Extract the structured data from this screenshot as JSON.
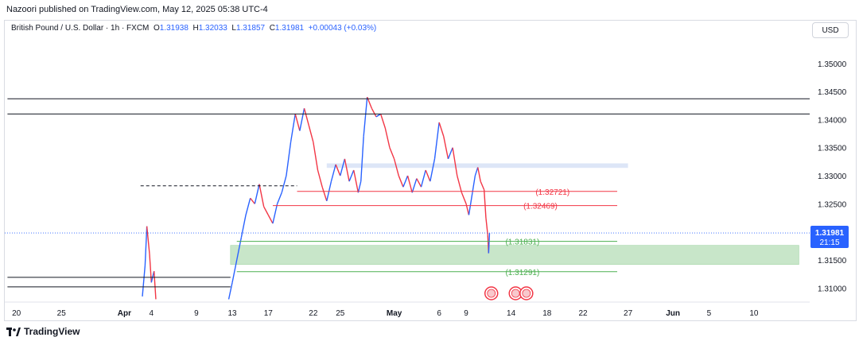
{
  "header": {
    "published": "Nazoori published on TradingView.com, May 12, 2025 05:38 UTC-4"
  },
  "legend": {
    "symbol": "British Pound / U.S. Dollar · 1h · FXCM",
    "o_label": "O",
    "o": "1.31938",
    "h_label": "H",
    "h": "1.32033",
    "l_label": "L",
    "l": "1.31857",
    "c_label": "C",
    "c": "1.31981",
    "change": "+0.00043 (+0.03%)"
  },
  "currency_button": "USD",
  "footer": {
    "brand": "TradingView"
  },
  "colors": {
    "up": "#2962ff",
    "down": "#f23645",
    "support_zone": "#c8e6c9",
    "resistance_zone": "#dde6f7",
    "hline": "#131722"
  },
  "chart_data": {
    "type": "line",
    "symbol": "GBPUSD",
    "timeframe": "1h",
    "ylim": [
      1.3075,
      1.3545
    ],
    "yticks": [
      "1.35000",
      "1.34500",
      "1.34000",
      "1.33500",
      "1.33000",
      "1.32500",
      "1.31500",
      "1.31000"
    ],
    "current_price": "1.31981",
    "countdown": "21:15",
    "xticks": [
      {
        "label": "20",
        "day": 0
      },
      {
        "label": "25",
        "day": 5
      },
      {
        "label": "Apr",
        "day": 12
      },
      {
        "label": "4",
        "day": 15
      },
      {
        "label": "9",
        "day": 20
      },
      {
        "label": "13",
        "day": 24
      },
      {
        "label": "17",
        "day": 28
      },
      {
        "label": "22",
        "day": 33
      },
      {
        "label": "25",
        "day": 36
      },
      {
        "label": "May",
        "day": 42
      },
      {
        "label": "6",
        "day": 47
      },
      {
        "label": "9",
        "day": 50
      },
      {
        "label": "14",
        "day": 55
      },
      {
        "label": "18",
        "day": 59
      },
      {
        "label": "22",
        "day": 63
      },
      {
        "label": "27",
        "day": 68
      },
      {
        "label": "Jun",
        "day": 73
      },
      {
        "label": "5",
        "day": 77
      },
      {
        "label": "10",
        "day": 82
      }
    ],
    "price_path": [
      [
        14.0,
        1.3085
      ],
      [
        14.3,
        1.314
      ],
      [
        14.5,
        1.321
      ],
      [
        14.8,
        1.316
      ],
      [
        15.0,
        1.311
      ],
      [
        15.3,
        1.313
      ],
      [
        15.5,
        1.308
      ],
      [
        23.6,
        1.308
      ],
      [
        24.0,
        1.311
      ],
      [
        24.5,
        1.315
      ],
      [
        25.0,
        1.319
      ],
      [
        25.5,
        1.323
      ],
      [
        26.0,
        1.326
      ],
      [
        26.5,
        1.325
      ],
      [
        27.0,
        1.3285
      ],
      [
        27.5,
        1.3245
      ],
      [
        28.0,
        1.323
      ],
      [
        28.5,
        1.3215
      ],
      [
        29.0,
        1.325
      ],
      [
        29.5,
        1.327
      ],
      [
        30.0,
        1.33
      ],
      [
        30.5,
        1.336
      ],
      [
        31.0,
        1.341
      ],
      [
        31.5,
        1.338
      ],
      [
        32.0,
        1.342
      ],
      [
        32.5,
        1.339
      ],
      [
        33.0,
        1.336
      ],
      [
        33.5,
        1.331
      ],
      [
        34.0,
        1.328
      ],
      [
        34.5,
        1.3255
      ],
      [
        35.0,
        1.329
      ],
      [
        35.5,
        1.332
      ],
      [
        36.0,
        1.33
      ],
      [
        36.5,
        1.333
      ],
      [
        37.0,
        1.329
      ],
      [
        37.5,
        1.331
      ],
      [
        38.0,
        1.327
      ],
      [
        38.3,
        1.329
      ],
      [
        38.6,
        1.337
      ],
      [
        39.0,
        1.344
      ],
      [
        39.5,
        1.342
      ],
      [
        40.0,
        1.3405
      ],
      [
        40.5,
        1.341
      ],
      [
        41.0,
        1.3385
      ],
      [
        41.5,
        1.335
      ],
      [
        42.0,
        1.333
      ],
      [
        42.5,
        1.33
      ],
      [
        43.0,
        1.328
      ],
      [
        43.5,
        1.33
      ],
      [
        44.0,
        1.327
      ],
      [
        44.5,
        1.3295
      ],
      [
        45.0,
        1.328
      ],
      [
        45.5,
        1.331
      ],
      [
        46.0,
        1.329
      ],
      [
        46.5,
        1.333
      ],
      [
        47.0,
        1.3395
      ],
      [
        47.5,
        1.337
      ],
      [
        48.0,
        1.333
      ],
      [
        48.5,
        1.335
      ],
      [
        49.0,
        1.33
      ],
      [
        49.5,
        1.327
      ],
      [
        50.0,
        1.325
      ],
      [
        50.3,
        1.323
      ],
      [
        50.7,
        1.327
      ],
      [
        51.0,
        1.33
      ],
      [
        51.3,
        1.3315
      ],
      [
        51.6,
        1.329
      ],
      [
        52.0,
        1.3275
      ],
      [
        52.2,
        1.3225
      ],
      [
        52.4,
        1.3195
      ],
      [
        52.5,
        1.3162
      ],
      [
        52.6,
        1.3198
      ]
    ],
    "lines": [
      {
        "kind": "horizontal",
        "price": 1.3437,
        "from_day": -1,
        "to_day": 89
      },
      {
        "kind": "horizontal",
        "price": 1.341,
        "from_day": -1,
        "to_day": 89
      },
      {
        "kind": "horizontal",
        "price": 1.3119,
        "from_day": -1,
        "to_day": 23.8
      },
      {
        "kind": "horizontal",
        "price": 1.3102,
        "from_day": -1,
        "to_day": 23.8
      },
      {
        "kind": "dashed",
        "price": 1.3282,
        "from_day": 13.8,
        "to_day": 31.2
      },
      {
        "kind": "level",
        "price": 1.32721,
        "label": "(1.32721)",
        "color": "#f23645",
        "from_day": 31.2,
        "to_day": 66.8
      },
      {
        "kind": "level",
        "price": 1.32469,
        "label": "(1.32469)",
        "color": "#f23645",
        "from_day": 28.5,
        "to_day": 66.8
      },
      {
        "kind": "level",
        "price": 1.31831,
        "label": "(1.31831)",
        "color": "#4caf50",
        "from_day": 24.5,
        "to_day": 66.8
      },
      {
        "kind": "level",
        "price": 1.31291,
        "label": "(1.31291)",
        "color": "#4caf50",
        "from_day": 24.5,
        "to_day": 66.8
      }
    ],
    "zones": [
      {
        "name": "resistance",
        "from_day": 34.5,
        "to_day": 68,
        "top": 1.3322,
        "bottom": 1.3314
      },
      {
        "name": "support",
        "from_day": 23.8,
        "to_day": 87,
        "top": 1.3176,
        "bottom": 1.3142
      }
    ],
    "events_day": [
      52.8,
      55.5,
      56.7
    ]
  }
}
